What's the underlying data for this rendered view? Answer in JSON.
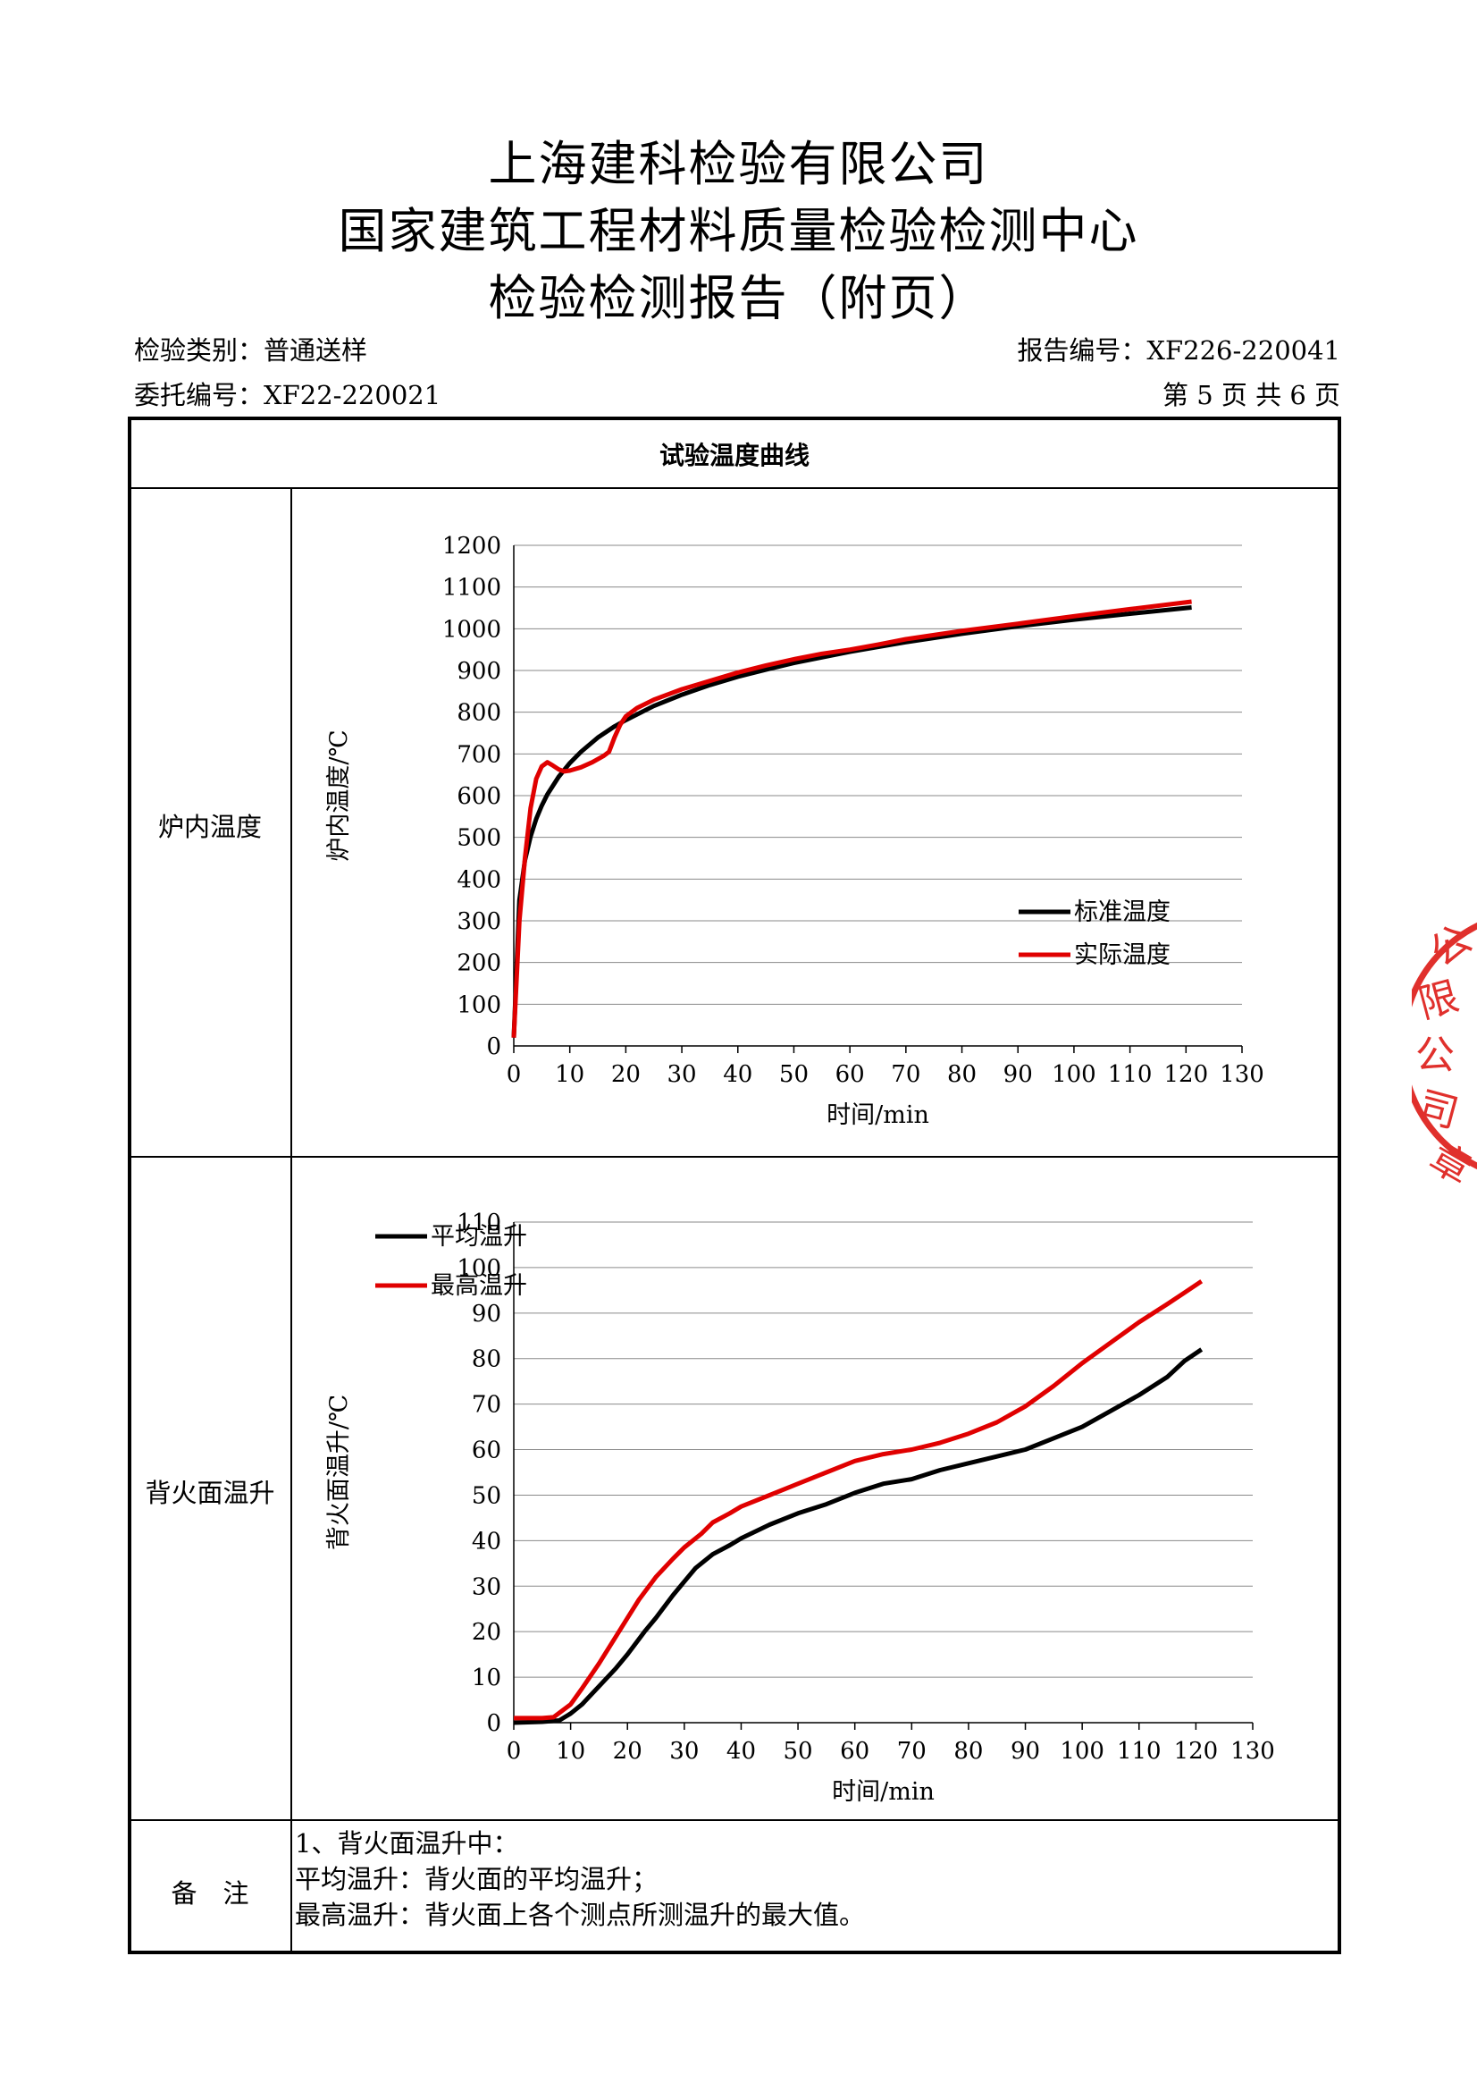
{
  "header": {
    "company": "上海建科检验有限公司",
    "center": "国家建筑工程材料质量检验检测中心",
    "report_title": "检验检测报告（附页）"
  },
  "meta": {
    "category": "检验类别：普通送样",
    "report_no": "报告编号：XF226-220041",
    "commission_no": "委托编号：XF22-220021",
    "page": "第 5 页 共 6 页"
  },
  "table": {
    "section_title": "试验温度曲线",
    "row1_label": "炉内温度",
    "row2_label": "背火面温升",
    "notes_label": "备　注",
    "notes": [
      "1、背火面温升中：",
      "平均温升：背火面的平均温升；",
      "最高温升：背火面上各个测点所测温升的最大值。"
    ]
  },
  "stamp": {
    "text": "公限公司章",
    "color": "#e0302c"
  },
  "chart_data": [
    {
      "type": "line",
      "title": "",
      "xlabel": "时间/min",
      "ylabel": "炉内温度/℃",
      "xlim": [
        0,
        130
      ],
      "ylim": [
        0,
        1200
      ],
      "xticks": [
        0,
        10,
        20,
        30,
        40,
        50,
        60,
        70,
        80,
        90,
        100,
        110,
        120,
        130
      ],
      "yticks": [
        0,
        100,
        200,
        300,
        400,
        500,
        600,
        700,
        800,
        900,
        1000,
        1100,
        1200
      ],
      "grid": "horizontal",
      "legend": "bottom-right",
      "series": [
        {
          "name": "标准温度",
          "color": "#000000",
          "x": [
            0,
            1,
            2,
            3,
            4,
            5,
            6,
            8,
            10,
            12,
            15,
            18,
            20,
            25,
            30,
            35,
            40,
            45,
            50,
            60,
            70,
            80,
            90,
            100,
            110,
            121
          ],
          "y": [
            20,
            349,
            445,
            502,
            544,
            576,
            603,
            645,
            678,
            705,
            739,
            766,
            781,
            815,
            842,
            865,
            885,
            902,
            918,
            945,
            968,
            988,
            1006,
            1022,
            1036,
            1051
          ]
        },
        {
          "name": "实际温度",
          "color": "#e00000",
          "x": [
            0,
            1,
            2,
            3,
            4,
            5,
            6,
            7,
            8,
            9,
            10,
            12,
            14,
            16,
            17,
            18,
            19,
            20,
            22,
            25,
            30,
            35,
            40,
            45,
            50,
            55,
            60,
            65,
            70,
            80,
            90,
            100,
            110,
            121
          ],
          "y": [
            20,
            300,
            450,
            570,
            640,
            670,
            680,
            672,
            663,
            658,
            660,
            668,
            680,
            695,
            705,
            740,
            770,
            790,
            810,
            830,
            855,
            875,
            895,
            912,
            927,
            940,
            950,
            962,
            975,
            995,
            1012,
            1030,
            1047,
            1065
          ]
        }
      ]
    },
    {
      "type": "line",
      "title": "",
      "xlabel": "时间/min",
      "ylabel": "背火面温升/℃",
      "xlim": [
        0,
        130
      ],
      "ylim": [
        0,
        110
      ],
      "xticks": [
        0,
        10,
        20,
        30,
        40,
        50,
        60,
        70,
        80,
        90,
        100,
        110,
        120,
        130
      ],
      "yticks": [
        0,
        10,
        20,
        30,
        40,
        50,
        60,
        70,
        80,
        90,
        100,
        110
      ],
      "grid": "horizontal",
      "legend": "top-left",
      "series": [
        {
          "name": "平均温升",
          "color": "#000000",
          "x": [
            0,
            5,
            8,
            10,
            12,
            15,
            18,
            20,
            23,
            25,
            28,
            30,
            32,
            35,
            38,
            40,
            45,
            50,
            55,
            60,
            65,
            70,
            75,
            80,
            85,
            90,
            95,
            100,
            105,
            110,
            115,
            118,
            121
          ],
          "y": [
            0,
            0.2,
            0.5,
            2,
            4,
            8,
            12,
            15,
            20,
            23,
            28,
            31,
            34,
            37,
            39,
            40.5,
            43.5,
            46,
            48,
            50.5,
            52.5,
            53.5,
            55.5,
            57,
            58.5,
            60,
            62.5,
            65,
            68.5,
            72,
            76,
            79.5,
            82
          ]
        },
        {
          "name": "最高温升",
          "color": "#e00000",
          "x": [
            0,
            5,
            7,
            10,
            12,
            15,
            18,
            20,
            22,
            25,
            28,
            30,
            33,
            35,
            38,
            40,
            45,
            50,
            55,
            60,
            65,
            70,
            75,
            80,
            85,
            90,
            95,
            100,
            105,
            110,
            115,
            118,
            121
          ],
          "y": [
            1,
            1,
            1.2,
            4,
            7.5,
            13,
            19,
            23,
            27,
            32,
            36,
            38.5,
            41.5,
            44,
            46,
            47.5,
            50,
            52.5,
            55,
            57.5,
            59,
            60,
            61.5,
            63.5,
            66,
            69.5,
            74,
            79,
            83.5,
            88,
            92,
            94.5,
            97
          ]
        }
      ]
    }
  ]
}
